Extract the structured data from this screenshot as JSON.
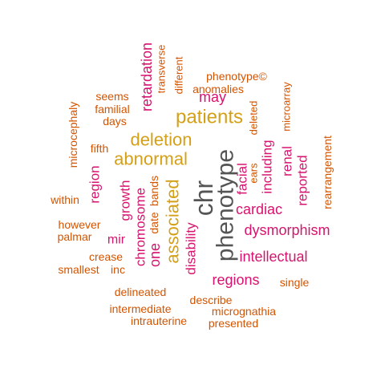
{
  "colors": {
    "dark": "#555555",
    "gold": "#d4a017",
    "magenta": "#d6136e",
    "orange": "#d35400"
  },
  "words": [
    {
      "text": "phenotype",
      "color": "dark"
    },
    {
      "text": "chr",
      "color": "dark"
    },
    {
      "text": "patients",
      "color": "gold"
    },
    {
      "text": "deletion",
      "color": "gold"
    },
    {
      "text": "abnormal",
      "color": "gold"
    },
    {
      "text": "associated",
      "color": "gold"
    },
    {
      "text": "one",
      "color": "magenta"
    },
    {
      "text": "chromosome",
      "color": "magenta"
    },
    {
      "text": "growth",
      "color": "magenta"
    },
    {
      "text": "region",
      "color": "magenta"
    },
    {
      "text": "retardation",
      "color": "magenta"
    },
    {
      "text": "may",
      "color": "magenta"
    },
    {
      "text": "mir",
      "color": "magenta"
    },
    {
      "text": "disability",
      "color": "magenta"
    },
    {
      "text": "facial",
      "color": "magenta"
    },
    {
      "text": "including",
      "color": "magenta"
    },
    {
      "text": "renal",
      "color": "magenta"
    },
    {
      "text": "reported",
      "color": "magenta"
    },
    {
      "text": "cardiac",
      "color": "magenta"
    },
    {
      "text": "dysmorphism",
      "color": "magenta"
    },
    {
      "text": "intellectual",
      "color": "magenta"
    },
    {
      "text": "regions",
      "color": "magenta"
    },
    {
      "text": "date",
      "color": "orange"
    },
    {
      "text": "bands",
      "color": "orange"
    },
    {
      "text": "phenotype©",
      "color": "orange"
    },
    {
      "text": "anomalies",
      "color": "orange"
    },
    {
      "text": "transverse",
      "color": "orange"
    },
    {
      "text": "different",
      "color": "orange"
    },
    {
      "text": "seems",
      "color": "orange"
    },
    {
      "text": "familial",
      "color": "orange"
    },
    {
      "text": "days",
      "color": "orange"
    },
    {
      "text": "microcephaly",
      "color": "orange"
    },
    {
      "text": "fifth",
      "color": "orange"
    },
    {
      "text": "deleted",
      "color": "orange"
    },
    {
      "text": "ears",
      "color": "orange"
    },
    {
      "text": "microarray",
      "color": "orange"
    },
    {
      "text": "rearrangement",
      "color": "orange"
    },
    {
      "text": "within",
      "color": "orange"
    },
    {
      "text": "however",
      "color": "orange"
    },
    {
      "text": "palmar",
      "color": "orange"
    },
    {
      "text": "crease",
      "color": "orange"
    },
    {
      "text": "smallest",
      "color": "orange"
    },
    {
      "text": "inc",
      "color": "orange"
    },
    {
      "text": "single",
      "color": "orange"
    },
    {
      "text": "delineated",
      "color": "orange"
    },
    {
      "text": "describe",
      "color": "orange"
    },
    {
      "text": "intermediate",
      "color": "orange"
    },
    {
      "text": "micrognathia",
      "color": "orange"
    },
    {
      "text": "intrauterine",
      "color": "orange"
    },
    {
      "text": "presented",
      "color": "orange"
    }
  ]
}
